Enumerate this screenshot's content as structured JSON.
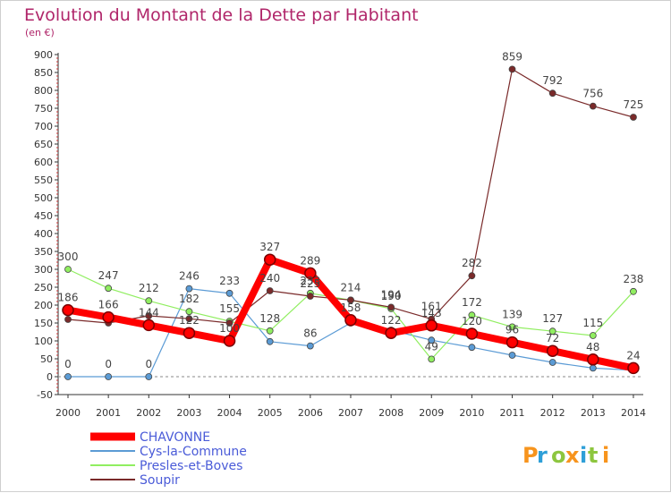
{
  "chart_data": {
    "type": "line",
    "title": "Evolution du Montant de la Dette par Habitant",
    "subtitle": "(en €)",
    "x": [
      "2000",
      "2001",
      "2002",
      "2003",
      "2004",
      "2005",
      "2006",
      "2007",
      "2008",
      "2009",
      "2010",
      "2011",
      "2012",
      "2013",
      "2014"
    ],
    "ylim": [
      -50,
      900
    ],
    "yticks": [
      -50,
      0,
      50,
      100,
      150,
      200,
      250,
      300,
      350,
      400,
      450,
      500,
      550,
      600,
      650,
      700,
      750,
      800,
      850,
      900
    ],
    "grid": false,
    "legend_position": "bottom-left",
    "series": [
      {
        "name": "CHAVONNE",
        "color": "#ff0000",
        "values": [
          186,
          166,
          144,
          122,
          100,
          327,
          289,
          158,
          122,
          143,
          120,
          96,
          72,
          48,
          24
        ],
        "labels": [
          "186",
          "166",
          "144",
          "122",
          "100",
          "327",
          "289",
          "158",
          "122",
          "143",
          "120",
          "96",
          "72",
          "48",
          "24"
        ]
      },
      {
        "name": "Cys-la-Commune",
        "color": "#5b9bd5",
        "values": [
          0,
          0,
          0,
          246,
          233,
          98,
          86,
          150,
          130,
          102,
          82,
          60,
          40,
          24,
          18
        ],
        "labels": [
          "0",
          "0",
          "0",
          "246",
          "233",
          "",
          "86",
          "",
          "",
          "",
          "",
          "",
          "",
          "",
          ""
        ]
      },
      {
        "name": "Presles-et-Boves",
        "color": "#90ee60",
        "values": [
          300,
          247,
          212,
          182,
          155,
          128,
          233,
          214,
          190,
          49,
          172,
          139,
          127,
          115,
          238
        ],
        "labels": [
          "300",
          "247",
          "212",
          "182",
          "155",
          "128",
          "233",
          "214",
          "190",
          "49",
          "172",
          "139",
          "127",
          "115",
          "238"
        ]
      },
      {
        "name": "Soupir",
        "color": "#7a2a2a",
        "values": [
          160,
          150,
          170,
          162,
          150,
          240,
          225,
          214,
          194,
          161,
          282,
          859,
          792,
          756,
          725
        ],
        "labels": [
          "",
          "",
          "",
          "",
          "",
          "240",
          "225",
          "",
          "194",
          "161",
          "282",
          "859",
          "792",
          "756",
          "725"
        ]
      }
    ]
  },
  "watermark": {
    "text": "Proxiti",
    "colors": [
      "#f7941d",
      "#2e9fd8",
      "#8dc63f"
    ]
  }
}
